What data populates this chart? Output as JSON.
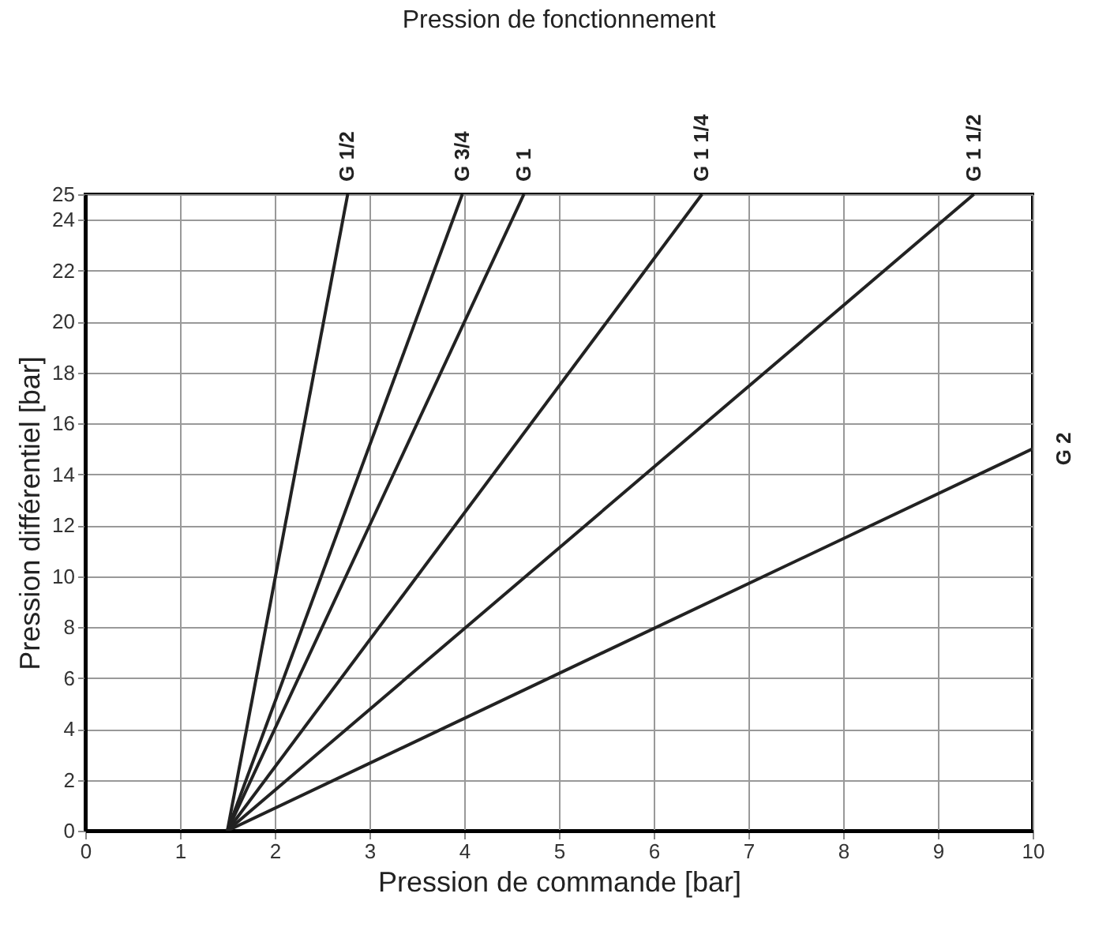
{
  "chart_data": {
    "type": "line",
    "title": "Pression de fonctionnement",
    "xlabel": "Pression de commande [bar]",
    "ylabel": "Pression différentiel [bar]",
    "xlim": [
      0,
      10
    ],
    "ylim": [
      0,
      25
    ],
    "xticks": [
      0,
      1,
      2,
      3,
      4,
      5,
      6,
      7,
      8,
      9,
      10
    ],
    "yticks": [
      0,
      2,
      4,
      6,
      8,
      10,
      12,
      14,
      16,
      18,
      20,
      22,
      24,
      25
    ],
    "grid": true,
    "legend": false,
    "marker": "none",
    "line_style": "solid",
    "series": [
      {
        "name": "G 1/2",
        "color": "#222222",
        "x": [
          1.5,
          2.77
        ],
        "values": [
          0,
          25
        ]
      },
      {
        "name": "G 3/4",
        "color": "#222222",
        "x": [
          1.5,
          3.98
        ],
        "values": [
          0,
          25
        ]
      },
      {
        "name": "G 1",
        "color": "#222222",
        "x": [
          1.5,
          4.63
        ],
        "values": [
          0,
          25
        ]
      },
      {
        "name": "G 1 1/4",
        "color": "#222222",
        "x": [
          1.5,
          6.51
        ],
        "values": [
          0,
          25
        ]
      },
      {
        "name": "G 1 1/2",
        "color": "#222222",
        "x": [
          1.5,
          9.38
        ],
        "values": [
          0,
          25
        ]
      },
      {
        "name": "G 2",
        "color": "#222222",
        "x": [
          1.5,
          10
        ],
        "values": [
          0,
          15
        ]
      }
    ]
  }
}
